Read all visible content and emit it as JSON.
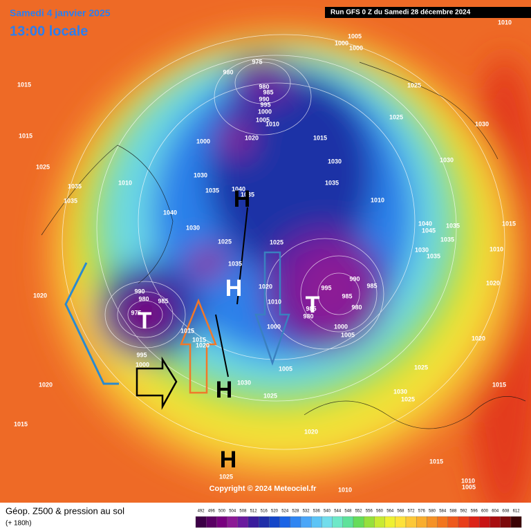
{
  "header": {
    "date": "Samedi 4 janvier 2025",
    "time": "13:00 locale",
    "run": "Run GFS 0 Z du Samedi 28 décembre 2024"
  },
  "copyright": "Copyright © 2024 Meteociel.fr",
  "footer": {
    "title": "Géop. Z500 & pression au sol",
    "lead": "(+ 180h)"
  },
  "pressure_centers": [
    "T",
    "T",
    "H",
    "H",
    "H",
    "H"
  ],
  "isobar_labels": [
    "1015",
    "1015",
    "1025",
    "1035",
    "1035",
    "1010",
    "1020",
    "1020",
    "1015",
    "980",
    "975",
    "1005",
    "1000",
    "1000",
    "1010",
    "980",
    "985",
    "990",
    "995",
    "1000",
    "1005",
    "1010",
    "1000",
    "1020",
    "1015",
    "1025",
    "1025",
    "1030",
    "1030",
    "1030",
    "1035",
    "1010",
    "1030",
    "1035",
    "1040",
    "1035",
    "1040",
    "1030",
    "1025",
    "1025",
    "1035",
    "1040",
    "1045",
    "1035",
    "1035",
    "1030",
    "1035",
    "1015",
    "1010",
    "1020",
    "990",
    "980",
    "975",
    "985",
    "990",
    "985",
    "995",
    "985",
    "980",
    "1020",
    "1010",
    "985",
    "980",
    "1000",
    "1000",
    "1005",
    "1015",
    "1015",
    "1020",
    "995",
    "1000",
    "1005",
    "1030",
    "1025",
    "1025",
    "1030",
    "1025",
    "1015",
    "1020",
    "1020",
    "1015",
    "1025",
    "1010",
    "1010",
    "1005"
  ],
  "colorbar": {
    "labels": [
      "492",
      "496",
      "500",
      "504",
      "508",
      "512",
      "516",
      "520",
      "524",
      "528",
      "532",
      "536",
      "540",
      "544",
      "548",
      "552",
      "556",
      "560",
      "564",
      "568",
      "572",
      "576",
      "580",
      "584",
      "588",
      "592",
      "596",
      "600",
      "604",
      "608",
      "612"
    ],
    "colors": [
      "#3c0046",
      "#5a0064",
      "#78007f",
      "#8c1a96",
      "#6a1a9e",
      "#3a1c9c",
      "#1f2ea8",
      "#1446c8",
      "#1a64e6",
      "#2f86f2",
      "#4aa6f8",
      "#5dc4f6",
      "#72ddec",
      "#6ee8c8",
      "#5ee29a",
      "#66dc5a",
      "#96e03c",
      "#c8ea32",
      "#eef032",
      "#fde23a",
      "#fcc838",
      "#f9ae2e",
      "#f59226",
      "#f2761e",
      "#ee5a1c",
      "#e83e1a",
      "#dc2418",
      "#c81414",
      "#a80e10",
      "#7c0a0c",
      "#3c0406"
    ]
  }
}
